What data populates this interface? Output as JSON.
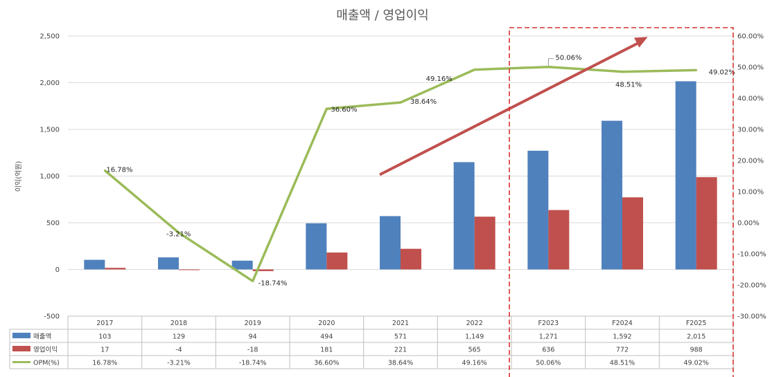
{
  "chart_data": {
    "type": "bar",
    "title": "매출액 / 영업이익",
    "ylabel": "이익(억원)",
    "categories": [
      "2017",
      "2018",
      "2019",
      "2020",
      "2021",
      "2022",
      "F2023",
      "F2024",
      "F2025"
    ],
    "series": [
      {
        "name": "매출액",
        "kind": "bar",
        "axis": "left",
        "values": [
          103,
          129,
          94,
          494,
          571,
          1149,
          1271,
          1592,
          2015
        ]
      },
      {
        "name": "영업이익",
        "kind": "bar",
        "axis": "left",
        "values": [
          17,
          -4,
          -18,
          181,
          221,
          565,
          636,
          772,
          988
        ]
      },
      {
        "name": "OPM(%)",
        "kind": "line",
        "axis": "right",
        "values": [
          16.78,
          -3.21,
          -18.74,
          36.6,
          38.64,
          49.16,
          50.06,
          48.51,
          49.02
        ]
      }
    ],
    "y_left": {
      "min": -500,
      "max": 2500,
      "ticks": [
        "-500",
        "0",
        "500",
        "1,000",
        "1,500",
        "2,000",
        "2,500"
      ]
    },
    "y_right": {
      "min": -30,
      "max": 60,
      "ticks": [
        "-30.00%",
        "-20.00%",
        "-10.00%",
        "0.00%",
        "10.00%",
        "20.00%",
        "30.00%",
        "40.00%",
        "50.00%",
        "60.00%"
      ]
    },
    "table": {
      "rows": [
        {
          "name": "매출액",
          "cells": [
            "103",
            "129",
            "94",
            "494",
            "571",
            "1,149",
            "1,271",
            "1,592",
            "2,015"
          ]
        },
        {
          "name": "영업이익",
          "cells": [
            "17",
            "-4",
            "-18",
            "181",
            "221",
            "565",
            "636",
            "772",
            "988"
          ]
        },
        {
          "name": "OPM(%)",
          "cells": [
            "16.78%",
            "-3.21%",
            "-18.74%",
            "36.60%",
            "38.64%",
            "49.16%",
            "50.06%",
            "48.51%",
            "49.02%"
          ]
        }
      ]
    },
    "line_labels": [
      "16.78%",
      "-3.21%",
      "-18.74%",
      "36.60%",
      "38.64%",
      "49.16%",
      "50.06%",
      "48.51%",
      "49.02%"
    ],
    "highlight": {
      "from_category": "F2023",
      "to_category": "F2025",
      "style": "dashed",
      "color": "#d9312b"
    },
    "trend_arrow": {
      "color": "#c0504d",
      "from": {
        "category": "2021",
        "value": 1000
      },
      "to": {
        "category": "F2025",
        "value": 2490
      }
    },
    "colors": {
      "매출액": "#4f81bd",
      "영업이익": "#c0504d",
      "OPM(%)": "#9bbb59",
      "grid": "#d9d9d9",
      "text": "#404040"
    },
    "grid": true,
    "legend": "table"
  }
}
